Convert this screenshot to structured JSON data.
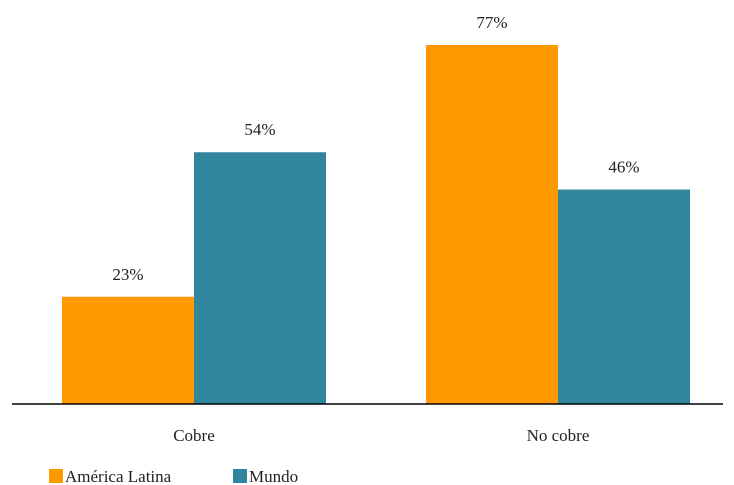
{
  "chart_data": {
    "type": "bar",
    "categories": [
      "Cobre",
      "No cobre"
    ],
    "series": [
      {
        "name": "América Latina",
        "values": [
          23,
          77
        ],
        "labels": [
          "23%",
          "77%"
        ],
        "color": "#FF9900"
      },
      {
        "name": "Mundo",
        "values": [
          54,
          46
        ],
        "labels": [
          "54%",
          "46%"
        ],
        "color": "#31859C"
      }
    ],
    "ylim": [
      0,
      100
    ],
    "grid": false,
    "legend_position": "bottom-left",
    "title": "",
    "xlabel": "",
    "ylabel": ""
  }
}
